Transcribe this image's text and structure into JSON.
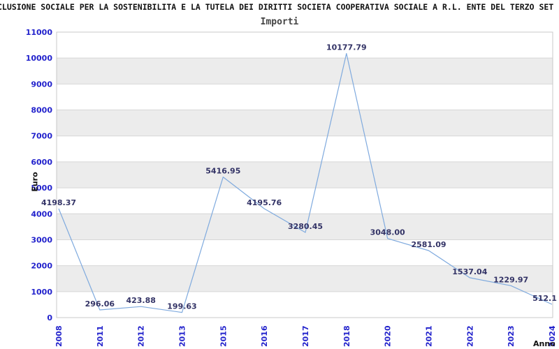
{
  "header": {
    "title": "CLUSIONE SOCIALE PER LA SOSTENIBILITA E LA TUTELA DEI DIRITTI SOCIETA COOPERATIVA SOCIALE A R.L. ENTE DEL TERZO SET",
    "subtitle": "Importi"
  },
  "axes": {
    "y_title": "Euro",
    "x_title": "Anno"
  },
  "chart_data": {
    "type": "line",
    "title": "Importi",
    "xlabel": "Anno",
    "ylabel": "Euro",
    "categories": [
      "2008",
      "2011",
      "2012",
      "2013",
      "2015",
      "2016",
      "2017",
      "2018",
      "2020",
      "2021",
      "2022",
      "2023",
      "2024"
    ],
    "values": [
      4198.37,
      296.06,
      423.88,
      199.63,
      5416.95,
      4195.76,
      3280.45,
      10177.79,
      3048.0,
      2581.09,
      1537.04,
      1229.97,
      512.1
    ],
    "point_labels": [
      "4198.37",
      "296.06",
      "423.88",
      "199.63",
      "5416.95",
      "4195.76",
      "3280.45",
      "10177.79",
      "3048.00",
      "2581.09",
      "1537.04",
      "1229.97",
      "512.1"
    ],
    "ylim": [
      0,
      11000
    ],
    "ytick_step": 1000,
    "grid": "horizontal",
    "legend": "none",
    "colors": {
      "line": "#7faade",
      "point_label": "#333366",
      "tick_label": "#2222cc",
      "band": "#ececec",
      "gridline": "#d6d6d6",
      "border": "#c8c8c8",
      "title": "#111111",
      "subtitle": "#444444"
    }
  }
}
